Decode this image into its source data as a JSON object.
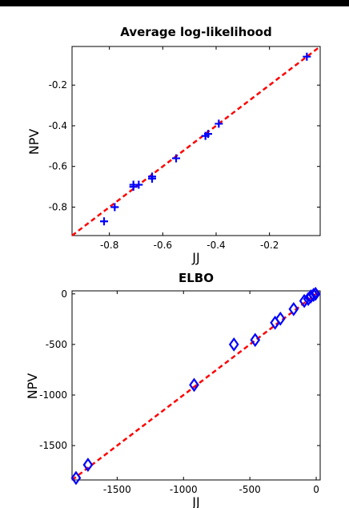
{
  "colors": {
    "marker": "#0000ff",
    "refline": "#ff0000",
    "axes": "#000000",
    "frame_bar": "#000000"
  },
  "chart_data": [
    {
      "type": "scatter",
      "title": "Average log-likelihood",
      "xlabel": "JJ",
      "ylabel": "NPV",
      "xlim": [
        -0.94,
        -0.01
      ],
      "ylim": [
        -0.94,
        -0.01
      ],
      "xticks": [
        -0.8,
        -0.6,
        -0.4,
        -0.2
      ],
      "xtick_labels": [
        "-0.8",
        "-0.6",
        "-0.4",
        "-0.2"
      ],
      "yticks": [
        -0.8,
        -0.6,
        -0.4,
        -0.2
      ],
      "ytick_labels": [
        "-0.8",
        "-0.6",
        "-0.4",
        "-0.2"
      ],
      "marker": "plus",
      "grid": false,
      "reference_line": {
        "style": "dashed",
        "from": [
          -0.94,
          -0.94
        ],
        "to": [
          -0.01,
          -0.01
        ]
      },
      "series": [
        {
          "points": [
            [
              -0.82,
              -0.87
            ],
            [
              -0.78,
              -0.8
            ],
            [
              -0.71,
              -0.69
            ],
            [
              -0.71,
              -0.7
            ],
            [
              -0.69,
              -0.69
            ],
            [
              -0.64,
              -0.66
            ],
            [
              -0.64,
              -0.65
            ],
            [
              -0.55,
              -0.56
            ],
            [
              -0.44,
              -0.45
            ],
            [
              -0.43,
              -0.44
            ],
            [
              -0.39,
              -0.39
            ],
            [
              -0.06,
              -0.06
            ]
          ]
        }
      ]
    },
    {
      "type": "scatter",
      "title": "ELBO",
      "xlabel": "JJ",
      "ylabel": "NPV",
      "xlim": [
        -1840,
        30
      ],
      "ylim": [
        -1840,
        30
      ],
      "xticks": [
        -1500,
        -1000,
        -500,
        0
      ],
      "xtick_labels": [
        "-1500",
        "-1000",
        "-500",
        "0"
      ],
      "yticks": [
        -1500,
        -1000,
        -500,
        0
      ],
      "ytick_labels": [
        "-1500",
        "-1000",
        "-500",
        "0"
      ],
      "marker": "diamond",
      "grid": false,
      "reference_line": {
        "style": "dashed",
        "from": [
          -1840,
          -1840
        ],
        "to": [
          30,
          30
        ]
      },
      "series": [
        {
          "points": [
            [
              -1810,
              -1820
            ],
            [
              -1720,
              -1690
            ],
            [
              -920,
              -900
            ],
            [
              -620,
              -500
            ],
            [
              -460,
              -455
            ],
            [
              -310,
              -285
            ],
            [
              -270,
              -245
            ],
            [
              -170,
              -150
            ],
            [
              -90,
              -70
            ],
            [
              -60,
              -50
            ],
            [
              -40,
              -25
            ],
            [
              -20,
              -10
            ],
            [
              -5,
              0
            ]
          ]
        }
      ]
    }
  ]
}
